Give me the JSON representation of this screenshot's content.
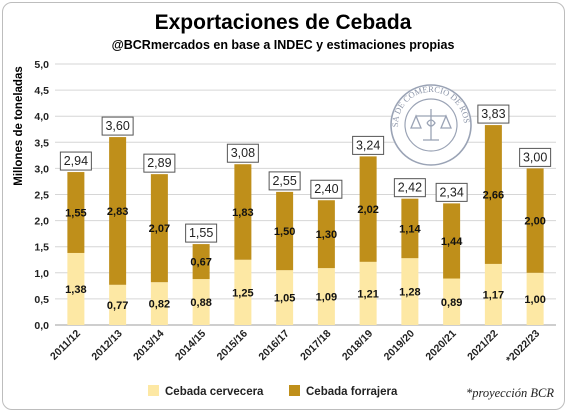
{
  "chart_data": {
    "type": "bar",
    "stacked": true,
    "title": "Exportaciones de Cebada",
    "subtitle": "@BCRmercados en base a INDEC y estimaciones propias",
    "ylabel": "Millones de toneladas",
    "xlabel": "",
    "ylim": [
      0,
      5
    ],
    "y_ticks": [
      "0,0",
      "0,5",
      "1,0",
      "1,5",
      "2,0",
      "2,5",
      "3,0",
      "3,5",
      "4,0",
      "4,5",
      "5,0"
    ],
    "grid": true,
    "legend_position": "bottom",
    "categories": [
      "2011/12",
      "2012/13",
      "2013/14",
      "2014/15",
      "2015/16",
      "2016/17",
      "2017/18",
      "2018/19",
      "2019/20",
      "2020/21",
      "2021/22",
      "*2022/23"
    ],
    "series": [
      {
        "name": "Cebada cervecera",
        "color": "#fde8a4",
        "values": [
          1.38,
          0.77,
          0.82,
          0.88,
          1.25,
          1.05,
          1.09,
          1.21,
          1.28,
          0.89,
          1.17,
          1.0
        ],
        "labels": [
          "1,38",
          "0,77",
          "0,82",
          "0,88",
          "1,25",
          "1,05",
          "1,09",
          "1,21",
          "1,28",
          "0,89",
          "1,17",
          "1,00"
        ]
      },
      {
        "name": "Cebada forrajera",
        "color": "#bf8f1a",
        "values": [
          1.55,
          2.83,
          2.07,
          0.67,
          1.83,
          1.5,
          1.3,
          2.02,
          1.14,
          1.44,
          2.66,
          2.0
        ],
        "labels": [
          "1,55",
          "2,83",
          "2,07",
          "0,67",
          "1,83",
          "1,50",
          "1,30",
          "2,02",
          "1,14",
          "1,44",
          "2,66",
          "2,00"
        ]
      }
    ],
    "totals": [
      2.94,
      3.6,
      2.89,
      1.55,
      3.08,
      2.55,
      2.4,
      3.24,
      2.42,
      2.34,
      3.83,
      3.0
    ],
    "total_labels": [
      "2,94",
      "3,60",
      "2,89",
      "1,55",
      "3,08",
      "2,55",
      "2,40",
      "3,24",
      "2,42",
      "2,34",
      "3,83",
      "3,00"
    ],
    "note": "*proyección BCR",
    "logo": {
      "text": "BOLSA DE COMERCIO DE ROSARIO"
    }
  }
}
